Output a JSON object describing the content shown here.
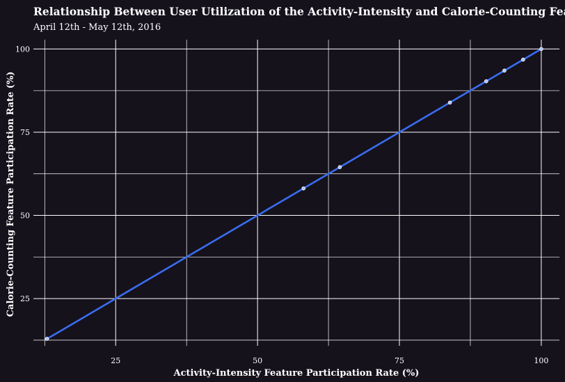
{
  "chart_data": {
    "type": "scatter",
    "title": "Relationship Between User Utilization of the Activity-Intensity and Calorie-Counting Features",
    "subtitle": "April 12th - May 12th, 2016",
    "xlabel": "Activity-Intensity Feature Participation Rate (%)",
    "ylabel": "Calorie-Counting Feature Participation Rate (%)",
    "xlim": [
      10.5,
      103.2
    ],
    "ylim": [
      10.8,
      102.8
    ],
    "x_ticks": [
      25,
      50,
      75,
      100
    ],
    "y_ticks": [
      25,
      50,
      75,
      100
    ],
    "grid": true,
    "trend_line": true,
    "points": [
      {
        "x": 12.9,
        "y": 12.9
      },
      {
        "x": 58.1,
        "y": 58.1
      },
      {
        "x": 64.5,
        "y": 64.5
      },
      {
        "x": 83.9,
        "y": 83.9
      },
      {
        "x": 90.3,
        "y": 90.3
      },
      {
        "x": 93.5,
        "y": 93.5
      },
      {
        "x": 96.8,
        "y": 96.8
      },
      {
        "x": 100,
        "y": 100
      }
    ],
    "colors": {
      "background": "#15121c",
      "grid": "#ffffff",
      "line": "#3a6df0",
      "point_fill": "#a9c4ff",
      "point_stroke": "#ffffff",
      "text": "#ffffff"
    }
  }
}
